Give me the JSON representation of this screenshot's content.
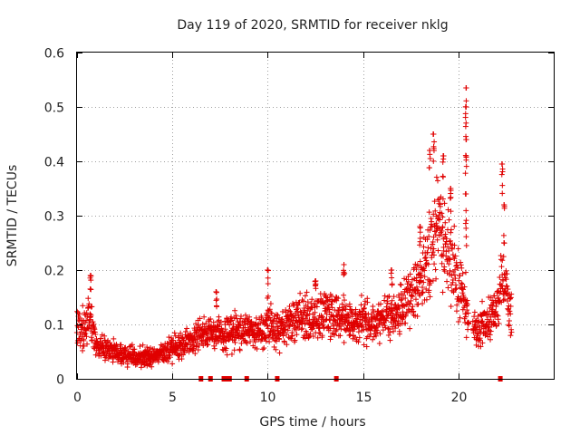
{
  "chart_data": {
    "type": "scatter",
    "title": "Day 119 of 2020, SRMTID for receiver nklg",
    "xlabel": "GPS time / hours",
    "ylabel": "SRMTID / TECUs",
    "xlim": [
      0,
      25
    ],
    "ylim": [
      0,
      0.6
    ],
    "x_ticks": [
      0,
      5,
      10,
      15,
      20
    ],
    "y_ticks": [
      0,
      0.1,
      0.2,
      0.3,
      0.4,
      0.5,
      0.6
    ],
    "x_tick_labels": [
      "0",
      "5",
      "10",
      "15",
      "20"
    ],
    "y_tick_labels": [
      "0",
      "0.1",
      "0.2",
      "0.3",
      "0.4",
      "0.5",
      "0.6"
    ],
    "grid": true,
    "color": "#e00000",
    "marker": "plus",
    "trend_profile": {
      "x": [
        0,
        0.3,
        0.7,
        1.0,
        1.5,
        2.0,
        2.5,
        3.0,
        3.5,
        4.0,
        4.5,
        5.0,
        5.5,
        6.0,
        6.5,
        7.0,
        7.5,
        8.0,
        8.5,
        9.0,
        9.5,
        10.0,
        10.5,
        11.0,
        11.5,
        12.0,
        12.5,
        13.0,
        13.5,
        14.0,
        14.5,
        15.0,
        15.5,
        16.0,
        16.5,
        17.0,
        17.5,
        18.0,
        18.5,
        18.8,
        19.2,
        19.6,
        20.0,
        20.3,
        20.6,
        21.0,
        21.5,
        22.0,
        22.3,
        22.7
      ],
      "y": [
        0.09,
        0.1,
        0.11,
        0.06,
        0.06,
        0.05,
        0.045,
        0.04,
        0.04,
        0.04,
        0.045,
        0.055,
        0.065,
        0.07,
        0.08,
        0.085,
        0.08,
        0.085,
        0.09,
        0.09,
        0.08,
        0.1,
        0.09,
        0.1,
        0.11,
        0.12,
        0.11,
        0.12,
        0.12,
        0.11,
        0.1,
        0.11,
        0.1,
        0.11,
        0.12,
        0.13,
        0.15,
        0.18,
        0.22,
        0.3,
        0.25,
        0.22,
        0.18,
        0.14,
        0.1,
        0.09,
        0.11,
        0.12,
        0.2,
        0.12
      ]
    },
    "spikes": [
      {
        "x": 0.7,
        "y": 0.19
      },
      {
        "x": 7.3,
        "y": 0.16
      },
      {
        "x": 10.0,
        "y": 0.2
      },
      {
        "x": 12.5,
        "y": 0.18
      },
      {
        "x": 14.0,
        "y": 0.21
      },
      {
        "x": 16.5,
        "y": 0.2
      },
      {
        "x": 18.0,
        "y": 0.28
      },
      {
        "x": 18.5,
        "y": 0.42
      },
      {
        "x": 18.7,
        "y": 0.45
      },
      {
        "x": 19.2,
        "y": 0.41
      },
      {
        "x": 19.6,
        "y": 0.35
      },
      {
        "x": 20.4,
        "y": 0.535
      },
      {
        "x": 20.4,
        "y": 0.5
      },
      {
        "x": 20.4,
        "y": 0.44
      },
      {
        "x": 20.4,
        "y": 0.34
      },
      {
        "x": 22.3,
        "y": 0.395
      },
      {
        "x": 22.4,
        "y": 0.32
      }
    ],
    "data_gap_markers_x": [
      6.5,
      7.0,
      7.7,
      7.9,
      8.0,
      8.9,
      10.5,
      13.6,
      22.2
    ]
  }
}
